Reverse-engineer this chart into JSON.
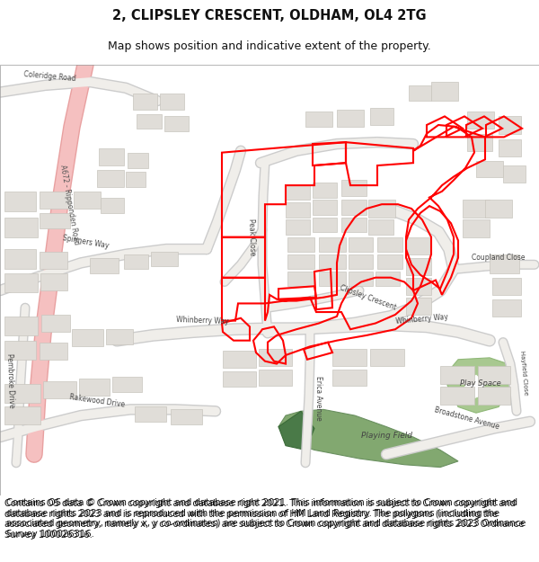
{
  "title_line1": "2, CLIPSLEY CRESCENT, OLDHAM, OL4 2TG",
  "title_line2": "Map shows position and indicative extent of the property.",
  "footer_text": "Contains OS data © Crown copyright and database right 2021. This information is subject to Crown copyright and database rights 2023 and is reproduced with the permission of HM Land Registry. The polygons (including the associated geometry, namely x, y co-ordinates) are subject to Crown copyright and database rights 2023 Ordnance Survey 100026316.",
  "bg_color": "#ffffff",
  "map_bg": "#ffffff",
  "road_color": "#ffffff",
  "building_fill": "#e0ddd8",
  "building_edge": "#c8c5be",
  "a672_fill": "#f5c0c0",
  "a672_edge": "#e8a0a0",
  "grey_road_fill": "#e8e6e2",
  "grey_road_edge": "#cccccc",
  "red_plot": "#ff0000",
  "green_field": "#8db87a",
  "green_field2": "#6a9e58",
  "play_space": "#a8c890",
  "title_fontsize": 10.5,
  "subtitle_fontsize": 9,
  "footer_fontsize": 7.2
}
